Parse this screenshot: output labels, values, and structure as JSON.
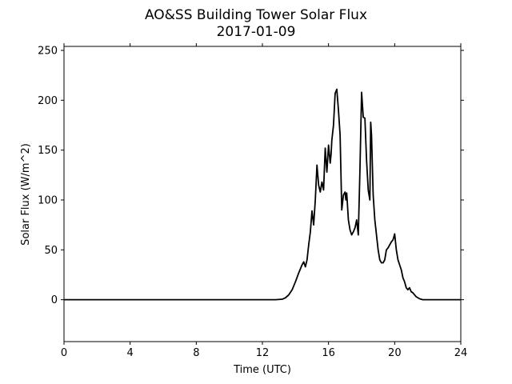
{
  "chart_data": {
    "type": "line",
    "title": "AO&SS Building Tower Solar Flux",
    "subtitle": "2017-01-09",
    "xlabel": "Time (UTC)",
    "ylabel": "Solar Flux (W/m^2)",
    "xlim": [
      0,
      24
    ],
    "ylim": [
      -42,
      254
    ],
    "xticks": [
      0,
      4,
      8,
      12,
      16,
      20,
      24
    ],
    "yticks": [
      0,
      50,
      100,
      150,
      200,
      250
    ],
    "grid": false,
    "line_color": "#000000",
    "series": [
      {
        "x": [
          0,
          1,
          2,
          3,
          4,
          5,
          6,
          7,
          8,
          9,
          10,
          11,
          12,
          12.8,
          13.2,
          13.4,
          13.6,
          13.8,
          14.0,
          14.2,
          14.4,
          14.5,
          14.6,
          14.7,
          14.8,
          14.9,
          15.0,
          15.1,
          15.2,
          15.3,
          15.4,
          15.5,
          15.6,
          15.7,
          15.8,
          15.9,
          16.0,
          16.1,
          16.15,
          16.2,
          16.3,
          16.4,
          16.5,
          16.6,
          16.7,
          16.8,
          16.9,
          17.0,
          17.05,
          17.1,
          17.2,
          17.3,
          17.4,
          17.5,
          17.6,
          17.7,
          17.8,
          17.9,
          18.0,
          18.1,
          18.2,
          18.3,
          18.4,
          18.5,
          18.55,
          18.6,
          18.7,
          18.8,
          18.9,
          19.0,
          19.1,
          19.2,
          19.3,
          19.4,
          19.5,
          19.6,
          19.7,
          19.8,
          19.9,
          20.0,
          20.1,
          20.2,
          20.3,
          20.4,
          20.5,
          20.6,
          20.7,
          20.8,
          20.9,
          21.0,
          21.1,
          21.2,
          21.3,
          21.4,
          21.5,
          21.6,
          21.7,
          21.8,
          21.9,
          22.0,
          22.2,
          22.4,
          22.6,
          22.8,
          23.0,
          23.5,
          24
        ],
        "y": [
          0,
          0,
          0,
          0,
          0,
          0,
          0,
          0,
          0,
          0,
          0,
          0,
          0,
          0,
          0.5,
          2,
          5,
          10,
          18,
          27,
          35,
          38,
          33,
          40,
          55,
          68,
          89,
          75,
          100,
          135,
          115,
          108,
          118,
          110,
          152,
          128,
          155,
          137,
          145,
          160,
          175,
          207,
          211,
          190,
          165,
          90,
          105,
          108,
          100,
          107,
          80,
          70,
          65,
          68,
          72,
          80,
          65,
          130,
          208,
          183,
          182,
          140,
          110,
          100,
          178,
          165,
          105,
          80,
          65,
          50,
          40,
          37,
          37,
          40,
          50,
          52,
          55,
          58,
          60,
          66,
          50,
          40,
          35,
          30,
          22,
          18,
          12,
          10,
          12,
          8,
          7,
          5,
          3,
          2,
          1,
          0.5,
          0,
          0,
          0,
          0,
          0,
          0,
          0,
          0,
          0,
          0,
          0
        ]
      }
    ]
  }
}
